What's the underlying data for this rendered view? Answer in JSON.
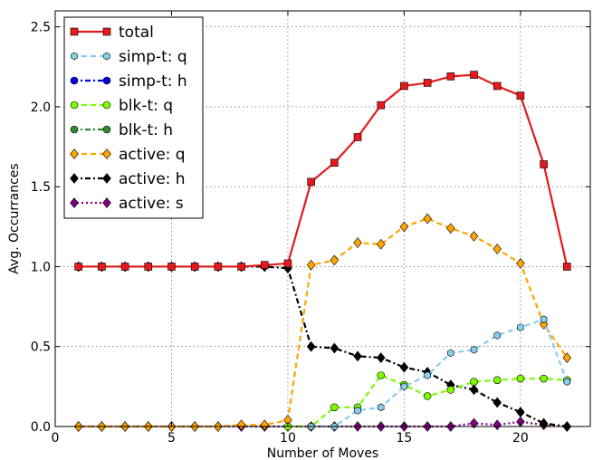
{
  "chart_data": {
    "type": "line",
    "xlabel": "Number of Moves",
    "ylabel": "Avg. Occurrances",
    "xlim": [
      0,
      23
    ],
    "ylim": [
      0,
      2.6
    ],
    "xticks": [
      0,
      5,
      10,
      15,
      20
    ],
    "yticks": [
      0.0,
      0.5,
      1.0,
      1.5,
      2.0,
      2.5
    ],
    "xtick_labels": [
      "0",
      "5",
      "10",
      "15",
      "20"
    ],
    "ytick_labels": [
      "0.0",
      "0.5",
      "1.0",
      "1.5",
      "2.0",
      "2.5"
    ],
    "grid": true,
    "legend_position": "top-left",
    "series": [
      {
        "name": "total",
        "color": "#e41a1c",
        "marker": "square",
        "line": "solid",
        "x": [
          1,
          2,
          3,
          4,
          5,
          6,
          7,
          8,
          9,
          10,
          11,
          12,
          13,
          14,
          15,
          16,
          17,
          18,
          19,
          20,
          21,
          22
        ],
        "y": [
          1.0,
          1.0,
          1.0,
          1.0,
          1.0,
          1.0,
          1.0,
          1.0,
          1.01,
          1.02,
          1.53,
          1.65,
          1.81,
          2.01,
          2.13,
          2.15,
          2.19,
          2.2,
          2.13,
          2.07,
          1.64,
          1.0
        ]
      },
      {
        "name": "simp-t: q",
        "color": "#87ceeb",
        "marker": "hexagon",
        "line": "dashed",
        "x": [
          11,
          12,
          13,
          14,
          15,
          16,
          17,
          18,
          19,
          20,
          21,
          22
        ],
        "y": [
          0.0,
          0.0,
          0.1,
          0.12,
          0.25,
          0.32,
          0.46,
          0.48,
          0.57,
          0.62,
          0.67,
          0.28
        ]
      },
      {
        "name": "simp-t: h",
        "color": "#0000dd",
        "marker": "circle",
        "line": "dashdot",
        "x": [],
        "y": []
      },
      {
        "name": "blk-t: q",
        "color": "#7cfc00",
        "marker": "circle",
        "line": "dashed",
        "x": [
          10,
          11,
          12,
          13,
          14,
          15,
          16,
          17,
          18,
          19,
          20,
          21,
          22
        ],
        "y": [
          0.0,
          0.0,
          0.12,
          0.12,
          0.32,
          0.26,
          0.19,
          0.23,
          0.28,
          0.29,
          0.3,
          0.3,
          0.29
        ]
      },
      {
        "name": "blk-t: h",
        "color": "#2e8b2e",
        "marker": "circle",
        "line": "dashdot",
        "x": [],
        "y": []
      },
      {
        "name": "active: q",
        "color": "#ffa500",
        "marker": "diamond",
        "line": "dashed",
        "x": [
          1,
          2,
          3,
          4,
          5,
          6,
          7,
          8,
          9,
          10,
          11,
          12,
          13,
          14,
          15,
          16,
          17,
          18,
          19,
          20,
          21,
          22
        ],
        "y": [
          0,
          0,
          0,
          0,
          0,
          0,
          0,
          0.01,
          0.01,
          0.04,
          1.01,
          1.04,
          1.15,
          1.14,
          1.25,
          1.3,
          1.24,
          1.19,
          1.11,
          1.02,
          0.64,
          0.43
        ]
      },
      {
        "name": "active: h",
        "color": "#000000",
        "marker": "diamond",
        "line": "dashdot",
        "x": [
          1,
          2,
          3,
          4,
          5,
          6,
          7,
          8,
          9,
          10,
          11,
          12,
          13,
          14,
          15,
          16,
          17,
          18,
          19,
          20,
          21,
          22
        ],
        "y": [
          1.0,
          1.0,
          1.0,
          1.0,
          1.0,
          1.0,
          1.0,
          1.0,
          1.0,
          0.99,
          0.5,
          0.49,
          0.44,
          0.43,
          0.37,
          0.34,
          0.26,
          0.23,
          0.15,
          0.09,
          0.02,
          0.0
        ]
      },
      {
        "name": "active: s",
        "color": "#800080",
        "marker": "diamond",
        "line": "dotted",
        "x": [
          1,
          2,
          3,
          4,
          5,
          6,
          7,
          8,
          9,
          10,
          11,
          12,
          13,
          14,
          15,
          16,
          17,
          18,
          19,
          20,
          21,
          22
        ],
        "y": [
          0,
          0,
          0,
          0,
          0,
          0,
          0,
          0,
          0,
          0,
          0,
          0,
          0,
          0,
          0,
          0,
          0,
          0.02,
          0.01,
          0.03,
          0.01,
          0.0
        ]
      }
    ]
  }
}
